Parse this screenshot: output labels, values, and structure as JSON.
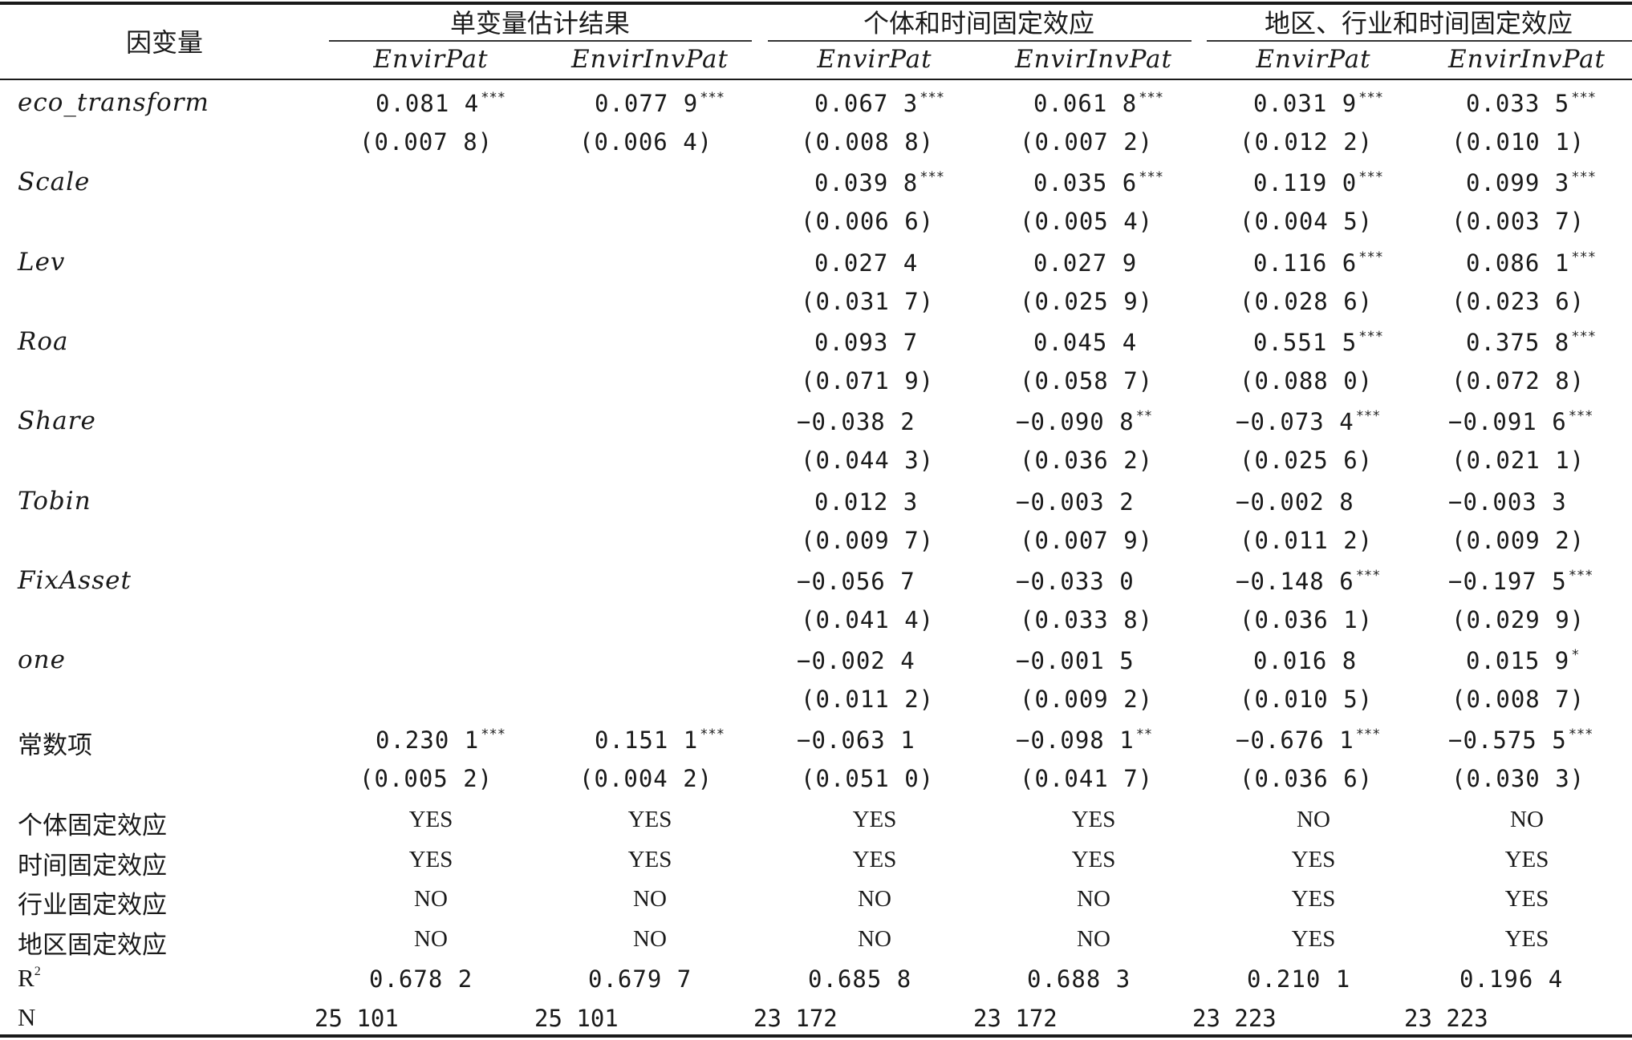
{
  "header": {
    "stub": "因变量",
    "groups": [
      "单变量估计结果",
      "个体和时间固定效应",
      "地区、行业和时间固定效应"
    ],
    "columns": [
      "EnvirPat",
      "EnvirInvPat",
      "EnvirPat",
      "EnvirInvPat",
      "EnvirPat",
      "EnvirInvPat"
    ]
  },
  "rows": [
    {
      "label": "eco_transform",
      "coef": [
        [
          "0.081 4",
          "***"
        ],
        [
          "0.077 9",
          "***"
        ],
        [
          "0.067 3",
          "***"
        ],
        [
          "0.061 8",
          "***"
        ],
        [
          "0.031 9",
          "***"
        ],
        [
          "0.033 5",
          "***"
        ]
      ],
      "se": [
        "(0.007 8)",
        "(0.006 4)",
        "(0.008 8)",
        "(0.007 2)",
        "(0.012 2)",
        "(0.010 1)"
      ]
    },
    {
      "label": "Scale",
      "coef": [
        [
          "",
          ""
        ],
        [
          "",
          ""
        ],
        [
          "0.039 8",
          "***"
        ],
        [
          "0.035 6",
          "***"
        ],
        [
          "0.119 0",
          "***"
        ],
        [
          "0.099 3",
          "***"
        ]
      ],
      "se": [
        "",
        "",
        "(0.006 6)",
        "(0.005 4)",
        "(0.004 5)",
        "(0.003 7)"
      ]
    },
    {
      "label": "Lev",
      "coef": [
        [
          "",
          ""
        ],
        [
          "",
          ""
        ],
        [
          "0.027 4",
          ""
        ],
        [
          "0.027 9",
          ""
        ],
        [
          "0.116 6",
          "***"
        ],
        [
          "0.086 1",
          "***"
        ]
      ],
      "se": [
        "",
        "",
        "(0.031 7)",
        "(0.025 9)",
        "(0.028 6)",
        "(0.023 6)"
      ]
    },
    {
      "label": "Roa",
      "coef": [
        [
          "",
          ""
        ],
        [
          "",
          ""
        ],
        [
          "0.093 7",
          ""
        ],
        [
          "0.045 4",
          ""
        ],
        [
          "0.551 5",
          "***"
        ],
        [
          "0.375 8",
          "***"
        ]
      ],
      "se": [
        "",
        "",
        "(0.071 9)",
        "(0.058 7)",
        "(0.088 0)",
        "(0.072 8)"
      ]
    },
    {
      "label": "Share",
      "coef": [
        [
          "",
          ""
        ],
        [
          "",
          ""
        ],
        [
          "−0.038 2",
          ""
        ],
        [
          "−0.090 8",
          "**"
        ],
        [
          "−0.073 4",
          "***"
        ],
        [
          "−0.091 6",
          "***"
        ]
      ],
      "se": [
        "",
        "",
        "(0.044 3)",
        "(0.036 2)",
        "(0.025 6)",
        "(0.021 1)"
      ]
    },
    {
      "label": "Tobin",
      "coef": [
        [
          "",
          ""
        ],
        [
          "",
          ""
        ],
        [
          "0.012 3",
          ""
        ],
        [
          "−0.003 2",
          ""
        ],
        [
          "−0.002 8",
          ""
        ],
        [
          "−0.003 3",
          ""
        ]
      ],
      "se": [
        "",
        "",
        "(0.009 7)",
        "(0.007 9)",
        "(0.011 2)",
        "(0.009 2)"
      ]
    },
    {
      "label": "FixAsset",
      "coef": [
        [
          "",
          ""
        ],
        [
          "",
          ""
        ],
        [
          "−0.056 7",
          ""
        ],
        [
          "−0.033 0",
          ""
        ],
        [
          "−0.148 6",
          "***"
        ],
        [
          "−0.197 5",
          "***"
        ]
      ],
      "se": [
        "",
        "",
        "(0.041 4)",
        "(0.033 8)",
        "(0.036 1)",
        "(0.029 9)"
      ]
    },
    {
      "label": "one",
      "coef": [
        [
          "",
          ""
        ],
        [
          "",
          ""
        ],
        [
          "−0.002 4",
          ""
        ],
        [
          "−0.001 5",
          ""
        ],
        [
          "0.016 8",
          ""
        ],
        [
          "0.015 9",
          "*"
        ]
      ],
      "se": [
        "",
        "",
        "(0.011 2)",
        "(0.009 2)",
        "(0.010 5)",
        "(0.008 7)"
      ]
    },
    {
      "label": "常数项",
      "coef": [
        [
          "0.230 1",
          "***"
        ],
        [
          "0.151 1",
          "***"
        ],
        [
          "−0.063 1",
          ""
        ],
        [
          "−0.098 1",
          "**"
        ],
        [
          "−0.676 1",
          "***"
        ],
        [
          "−0.575 5",
          "***"
        ]
      ],
      "se": [
        "(0.005 2)",
        "(0.004 2)",
        "(0.051 0)",
        "(0.041 7)",
        "(0.036 6)",
        "(0.030 3)"
      ]
    }
  ],
  "effects": [
    {
      "label": "个体固定效应",
      "values": [
        "YES",
        "YES",
        "YES",
        "YES",
        "NO",
        "NO"
      ]
    },
    {
      "label": "时间固定效应",
      "values": [
        "YES",
        "YES",
        "YES",
        "YES",
        "YES",
        "YES"
      ]
    },
    {
      "label": "行业固定效应",
      "values": [
        "NO",
        "NO",
        "NO",
        "NO",
        "YES",
        "YES"
      ]
    },
    {
      "label": "地区固定效应",
      "values": [
        "NO",
        "NO",
        "NO",
        "NO",
        "YES",
        "YES"
      ]
    }
  ],
  "r2": {
    "label": "R",
    "sup": "2",
    "values": [
      "0.678 2",
      "0.679 7",
      "0.685 8",
      "0.688 3",
      "0.210 1",
      "0.196 4"
    ]
  },
  "n": {
    "label": "N",
    "values": [
      "25 101",
      "25 101",
      "23 172",
      "23 172",
      "23 223",
      "23 223"
    ]
  }
}
